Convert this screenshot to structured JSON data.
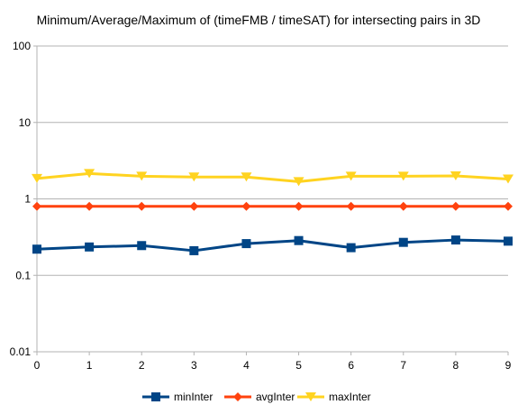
{
  "chart_data": {
    "type": "line",
    "title": "Minimum/Average/Maximum of (timeFMB / timeSAT) for intersecting pairs in 3D",
    "xlabel": "",
    "ylabel": "",
    "yscale": "log",
    "ylim": [
      0.01,
      100
    ],
    "xlim": [
      0,
      9
    ],
    "x": [
      0,
      1,
      2,
      3,
      4,
      5,
      6,
      7,
      8,
      9
    ],
    "xticklabels": [
      "0",
      "1",
      "2",
      "3",
      "4",
      "5",
      "6",
      "7",
      "8",
      "9"
    ],
    "yticks": [
      0.01,
      0.1,
      1,
      10,
      100
    ],
    "yticklabels": [
      "0.01",
      "0.1",
      "1",
      "10",
      "100"
    ],
    "grid": "horizontal",
    "legend": "bottom",
    "series": [
      {
        "name": "minInter",
        "color": "#004586",
        "marker": "square",
        "values": [
          0.22,
          0.235,
          0.245,
          0.21,
          0.26,
          0.285,
          0.23,
          0.27,
          0.29,
          0.28
        ]
      },
      {
        "name": "avgInter",
        "color": "#ff420e",
        "marker": "diamond",
        "values": [
          0.8,
          0.8,
          0.8,
          0.8,
          0.8,
          0.8,
          0.8,
          0.8,
          0.8,
          0.8
        ]
      },
      {
        "name": "maxInter",
        "color": "#ffd320",
        "marker": "triangle-down",
        "values": [
          1.85,
          2.15,
          1.98,
          1.93,
          1.93,
          1.68,
          1.98,
          1.98,
          2.0,
          1.82
        ]
      }
    ]
  }
}
